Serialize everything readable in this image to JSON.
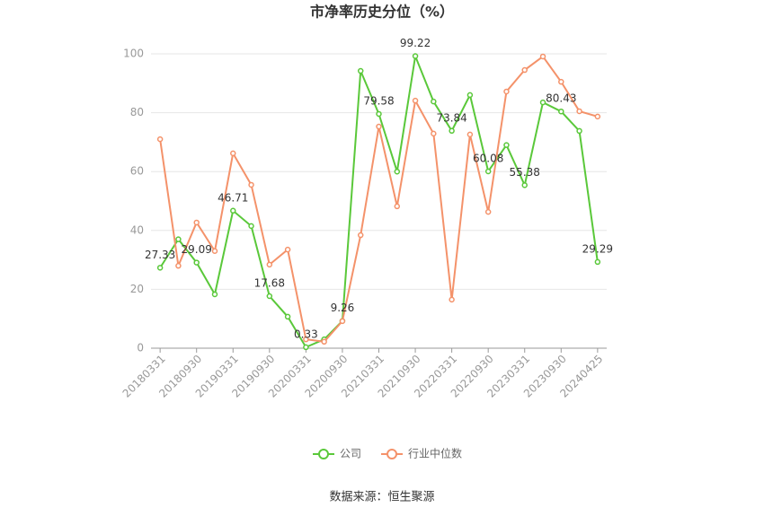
{
  "chart_data": {
    "type": "line",
    "title": "市净率历史分位（%）",
    "source": "数据来源：恒生聚源",
    "categories": [
      "20180331",
      null,
      "20180930",
      null,
      "20190331",
      null,
      "20190930",
      null,
      "20200331",
      null,
      "20200930",
      null,
      "20210331",
      null,
      "20210930",
      null,
      "20220331",
      null,
      "20220930",
      null,
      "20230331",
      null,
      "20230930",
      null,
      "20240425"
    ],
    "ylim": [
      0,
      100
    ],
    "yticks": [
      0,
      20,
      40,
      60,
      80,
      100
    ],
    "grid": true,
    "legend": "bottom",
    "series": [
      {
        "name": "公司",
        "color": "#5ac83a",
        "values": [
          27.33,
          37,
          29.09,
          18.3,
          46.71,
          41.5,
          17.68,
          10.7,
          0.33,
          3,
          9.26,
          94.2,
          79.58,
          60,
          99.22,
          83.8,
          73.84,
          86,
          60.08,
          69,
          55.38,
          83.5,
          80.43,
          73.8,
          29.29
        ],
        "value_labels": [
          "27.33",
          null,
          "29.09",
          null,
          "46.71",
          null,
          "17.68",
          null,
          "0.33",
          null,
          "9.26",
          null,
          "79.58",
          null,
          "99.22",
          null,
          "73.84",
          null,
          "60.08",
          null,
          "55.38",
          null,
          "80.43",
          null,
          "29.29"
        ]
      },
      {
        "name": "行业中位数",
        "color": "#f4926a",
        "values": [
          71,
          28,
          42.7,
          33,
          66.2,
          55.5,
          28.4,
          33.5,
          3,
          2.2,
          9.2,
          38.4,
          75.3,
          48.2,
          84.1,
          72.9,
          16.5,
          72.6,
          46.3,
          87.2,
          94.5,
          99.1,
          90.5,
          80.5,
          78.7
        ]
      }
    ]
  }
}
